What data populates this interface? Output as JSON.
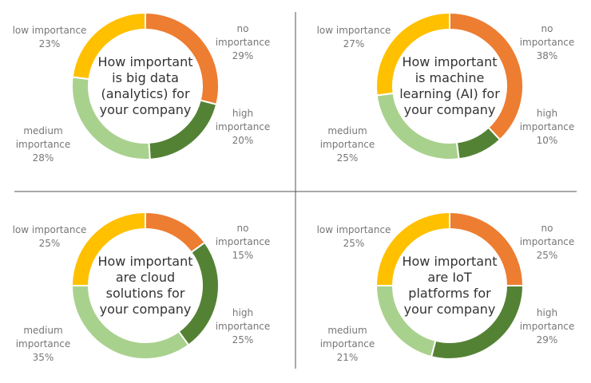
{
  "chart_data": [
    {
      "type": "donut",
      "title": "How important is big data (analytics) for your company",
      "categories": [
        "no importance",
        "high importance",
        "medium importance",
        "low importance"
      ],
      "values": [
        29,
        20,
        28,
        23
      ],
      "value_labels": [
        "29%",
        "20%",
        "28%",
        "23%"
      ],
      "colors": [
        "#ED7D31",
        "#548235",
        "#A9D18E",
        "#FFC000"
      ]
    },
    {
      "type": "donut",
      "title": "How important is machine learning (AI) for your company",
      "categories": [
        "no importance",
        "high importance",
        "medium importance",
        "low importance"
      ],
      "values": [
        38,
        10,
        25,
        27
      ],
      "value_labels": [
        "38%",
        "10%",
        "25%",
        "27%"
      ],
      "colors": [
        "#ED7D31",
        "#548235",
        "#A9D18E",
        "#FFC000"
      ]
    },
    {
      "type": "donut",
      "title": "How important are cloud solutions for your company",
      "categories": [
        "no importance",
        "high importance",
        "medium importance",
        "low importance"
      ],
      "values": [
        15,
        25,
        35,
        25
      ],
      "value_labels": [
        "15%",
        "25%",
        "35%",
        "25%"
      ],
      "colors": [
        "#ED7D31",
        "#548235",
        "#A9D18E",
        "#FFC000"
      ]
    },
    {
      "type": "donut",
      "title": "How important are IoT platforms for your company",
      "categories": [
        "no importance",
        "high importance",
        "medium importance",
        "low importance"
      ],
      "values": [
        25,
        29,
        21,
        25
      ],
      "value_labels": [
        "25%",
        "29%",
        "21%",
        "25%"
      ],
      "colors": [
        "#ED7D31",
        "#548235",
        "#A9D18E",
        "#FFC000"
      ]
    }
  ]
}
